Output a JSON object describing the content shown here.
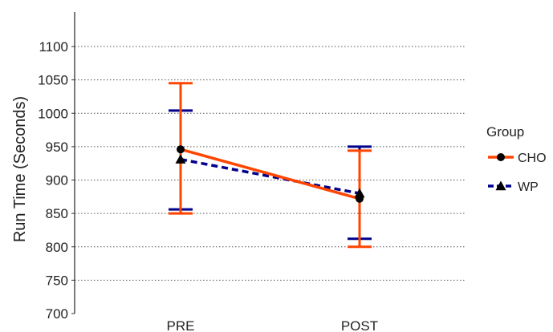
{
  "chart_data": {
    "type": "line",
    "title": "",
    "xlabel": "",
    "ylabel": "Run Time (Seconds)",
    "categories": [
      "PRE",
      "POST"
    ],
    "ylim": [
      700,
      1100
    ],
    "yticks": [
      700,
      750,
      800,
      850,
      900,
      950,
      1000,
      1050,
      1100
    ],
    "grid": "horizontal dotted",
    "legend": {
      "title": "Group",
      "placement": "right"
    },
    "series": [
      {
        "name": "CHO",
        "color": "#ff4500",
        "line_style": "solid",
        "marker": "circle",
        "values": [
          946,
          872
        ],
        "error_low": [
          850,
          800
        ],
        "error_high": [
          1045,
          944
        ]
      },
      {
        "name": "WP",
        "color": "#00008b",
        "line_style": "dashed",
        "marker": "triangle",
        "values": [
          931,
          880
        ],
        "error_low": [
          856,
          812
        ],
        "error_high": [
          1004,
          950
        ]
      }
    ]
  }
}
